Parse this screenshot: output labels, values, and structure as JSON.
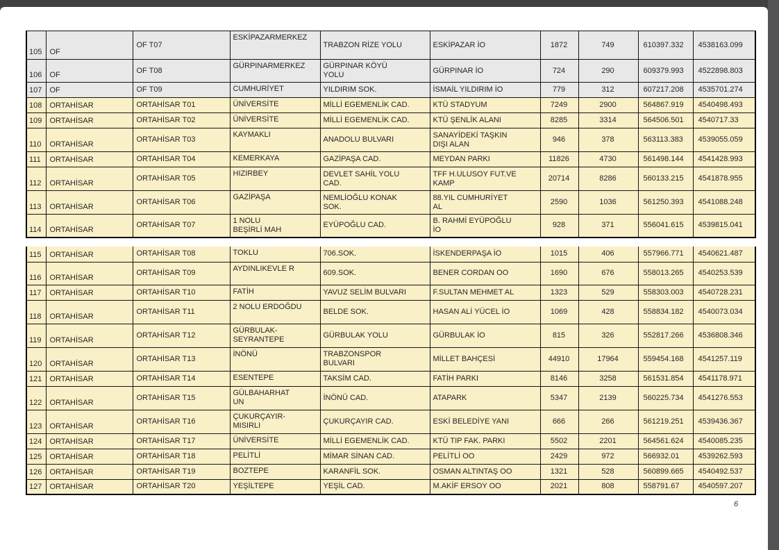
{
  "document": {
    "page_number": "6",
    "colors": {
      "gray_row": "#e8e8e8",
      "cream_row": "#faf0c8",
      "frame": "#3e4042"
    }
  },
  "tables": [
    {
      "name": "fragment-1",
      "rows": [
        {
          "no": "105",
          "district": "OF",
          "code": "OF T07",
          "neighborhood": "ESKİPAZARMERKEZ",
          "street": "TRABZON RİZE YOLU",
          "location": "ESKİPAZAR İO",
          "value1": "1872",
          "value2": "749",
          "coord_x": "610397.332",
          "coord_y": "4538163.099",
          "shade": "gray"
        },
        {
          "no": "106",
          "district": "OF",
          "code": "OF T08",
          "neighborhood": "GÜRPINARMERKEZ",
          "street": "GÜRPINAR KÖYÜ\nYOLU",
          "location": "GÜRPINAR İO",
          "value1": "724",
          "value2": "290",
          "coord_x": "609379.993",
          "coord_y": "4522898.803",
          "shade": "gray"
        },
        {
          "no": "107",
          "district": "OF",
          "code": "OF T09",
          "neighborhood": "CUMHURİYET",
          "street": "YILDIRIM SOK.",
          "location": "İSMAİL YILDIRIM İO",
          "value1": "779",
          "value2": "312",
          "coord_x": "607217.208",
          "coord_y": "4535701.274",
          "shade": "gray"
        },
        {
          "no": "108",
          "district": "ORTAHİSAR",
          "code": "ORTAHİSAR T01",
          "neighborhood": "ÜNİVERSİTE",
          "street": "MİLLİ EGEMENLİK CAD.",
          "location": "KTÜ STADYUM",
          "value1": "7249",
          "value2": "2900",
          "coord_x": "564867.919",
          "coord_y": "4540498.493",
          "shade": "cream"
        },
        {
          "no": "109",
          "district": "ORTAHİSAR",
          "code": "ORTAHİSAR T02",
          "neighborhood": "ÜNİVERSİTE",
          "street": "MİLLİ EGEMENLİK CAD.",
          "location": "KTÜ ŞENLİK ALANI",
          "value1": "8285",
          "value2": "3314",
          "coord_x": "564506.501",
          "coord_y": "4540717.33",
          "shade": "cream"
        },
        {
          "no": "110",
          "district": "ORTAHİSAR",
          "code": "ORTAHİSAR T03",
          "neighborhood": "KAYMAKLI",
          "street": "ANADOLU BULVARI",
          "location": "SANAYİDEKİ TAŞKIN\nDIŞI ALAN",
          "value1": "946",
          "value2": "378",
          "coord_x": "563113.383",
          "coord_y": "4539055.059",
          "shade": "cream"
        },
        {
          "no": "111",
          "district": "ORTAHİSAR",
          "code": "ORTAHİSAR T04",
          "neighborhood": "KEMERKAYA",
          "street": "GAZİPAŞA CAD.",
          "location": "MEYDAN PARKI",
          "value1": "11826",
          "value2": "4730",
          "coord_x": "561498.144",
          "coord_y": "4541428.993",
          "shade": "cream"
        },
        {
          "no": "112",
          "district": "ORTAHİSAR",
          "code": "ORTAHİSAR T05",
          "neighborhood": "HIZIRBEY",
          "street": "DEVLET SAHİL YOLU\nCAD.",
          "location": "TFF H.ULUSOY FUT.VE\nKAMP",
          "value1": "20714",
          "value2": "8286",
          "coord_x": "560133.215",
          "coord_y": "4541878.955",
          "shade": "cream"
        },
        {
          "no": "113",
          "district": "ORTAHİSAR",
          "code": "ORTAHİSAR T06",
          "neighborhood": "GAZİPAŞA",
          "street": "NEMLİOĞLU KONAK\nSOK.",
          "location": "88.YIL CUMHURİYET\nAL",
          "value1": "2590",
          "value2": "1036",
          "coord_x": "561250.393",
          "coord_y": "4541088.248",
          "shade": "cream"
        },
        {
          "no": "114",
          "district": "ORTAHİSAR",
          "code": "ORTAHİSAR T07",
          "neighborhood": "1 NOLU\nBEŞİRLİ MAH",
          "street": "EYÜPOĞLU CAD.",
          "location": "B. RAHMİ EYÜPOĞLU\nİO",
          "value1": "928",
          "value2": "371",
          "coord_x": "556041.615",
          "coord_y": "4539815.041",
          "shade": "cream"
        }
      ]
    },
    {
      "name": "fragment-2",
      "rows": [
        {
          "no": "115",
          "district": "ORTAHİSAR",
          "code": "ORTAHİSAR T08",
          "neighborhood": "TOKLU",
          "street": "706.SOK.",
          "location": "İSKENDERPAŞA İO",
          "value1": "1015",
          "value2": "406",
          "coord_x": "557966.771",
          "coord_y": "4540621.487",
          "shade": "cream"
        },
        {
          "no": "116",
          "district": "ORTAHİSAR",
          "code": "ORTAHİSAR T09",
          "neighborhood": "AYDINLIKEVLE R",
          "street": "609.SOK.",
          "location": "BENER CORDAN OO",
          "value1": "1690",
          "value2": "676",
          "coord_x": "558013.265",
          "coord_y": "4540253.539",
          "shade": "cream"
        },
        {
          "no": "117",
          "district": "ORTAHİSAR",
          "code": "ORTAHİSAR T10",
          "neighborhood": "FATİH",
          "street": "YAVUZ SELİM BULVARI",
          "location": "F.SULTAN MEHMET AL",
          "value1": "1323",
          "value2": "529",
          "coord_x": "558303.003",
          "coord_y": "4540728.231",
          "shade": "cream"
        },
        {
          "no": "118",
          "district": "ORTAHİSAR",
          "code": "ORTAHİSAR T11",
          "neighborhood": "2 NOLU ERDOĞDU",
          "street": "BELDE SOK.",
          "location": "HASAN ALİ YÜCEL İO",
          "value1": "1069",
          "value2": "428",
          "coord_x": "558834.182",
          "coord_y": "4540073.034",
          "shade": "cream"
        },
        {
          "no": "119",
          "district": "ORTAHİSAR",
          "code": "ORTAHİSAR T12",
          "neighborhood": "GÜRBULAK-\nSEYRANTEPE",
          "street": "GÜRBULAK YOLU",
          "location": "GÜRBULAK İO",
          "value1": "815",
          "value2": "326",
          "coord_x": "552817.266",
          "coord_y": "4536808.346",
          "shade": "cream"
        },
        {
          "no": "120",
          "district": "ORTAHİSAR",
          "code": "ORTAHİSAR T13",
          "neighborhood": "İNÖNÜ",
          "street": "TRABZONSPOR\nBULVARI",
          "location": "MİLLET BAHÇESİ",
          "value1": "44910",
          "value2": "17964",
          "coord_x": "559454.168",
          "coord_y": "4541257.119",
          "shade": "cream"
        },
        {
          "no": "121",
          "district": "ORTAHİSAR",
          "code": "ORTAHİSAR T14",
          "neighborhood": "ESENTEPE",
          "street": "TAKSİM CAD.",
          "location": "FATİH PARKI",
          "value1": "8146",
          "value2": "3258",
          "coord_x": "561531.854",
          "coord_y": "4541178.971",
          "shade": "cream"
        },
        {
          "no": "122",
          "district": "ORTAHİSAR",
          "code": "ORTAHİSAR T15",
          "neighborhood": "GÜLBAHARHAT\nUN",
          "street": "İNÖNÜ CAD.",
          "location": "ATAPARK",
          "value1": "5347",
          "value2": "2139",
          "coord_x": "560225.734",
          "coord_y": "4541276.553",
          "shade": "cream"
        },
        {
          "no": "123",
          "district": "ORTAHİSAR",
          "code": "ORTAHİSAR T16",
          "neighborhood": "ÇUKURÇAYIR-\nMISIRLI",
          "street": "ÇUKURÇAYIR CAD.",
          "location": "ESKİ BELEDİYE YANI",
          "value1": "666",
          "value2": "266",
          "coord_x": "561219.251",
          "coord_y": "4539436.367",
          "shade": "cream"
        },
        {
          "no": "124",
          "district": "ORTAHİSAR",
          "code": "ORTAHİSAR T17",
          "neighborhood": "ÜNİVERSİTE",
          "street": "MİLLİ EGEMENLİK CAD.",
          "location": "KTÜ TIP FAK. PARKI",
          "value1": "5502",
          "value2": "2201",
          "coord_x": "564561.624",
          "coord_y": "4540085.235",
          "shade": "cream"
        },
        {
          "no": "125",
          "district": "ORTAHİSAR",
          "code": "ORTAHİSAR T18",
          "neighborhood": "PELİTLİ",
          "street": "MİMAR SİNAN CAD.",
          "location": "PELİTLİ OO",
          "value1": "2429",
          "value2": "972",
          "coord_x": "566932.01",
          "coord_y": "4539262.593",
          "shade": "cream"
        },
        {
          "no": "126",
          "district": "ORTAHİSAR",
          "code": "ORTAHİSAR T19",
          "neighborhood": "BOZTEPE",
          "street": "KARANFİL SOK.",
          "location": "OSMAN ALTINTAŞ OO",
          "value1": "1321",
          "value2": "528",
          "coord_x": "560899.665",
          "coord_y": "4540492.537",
          "shade": "cream"
        },
        {
          "no": "127",
          "district": "ORTAHİSAR",
          "code": "ORTAHİSAR T20",
          "neighborhood": "YEŞİLTEPE",
          "street": "YEŞİL CAD.",
          "location": "M.AKİF ERSOY OO",
          "value1": "2021",
          "value2": "808",
          "coord_x": "558791.67",
          "coord_y": "4540597.207",
          "shade": "cream"
        }
      ]
    }
  ]
}
